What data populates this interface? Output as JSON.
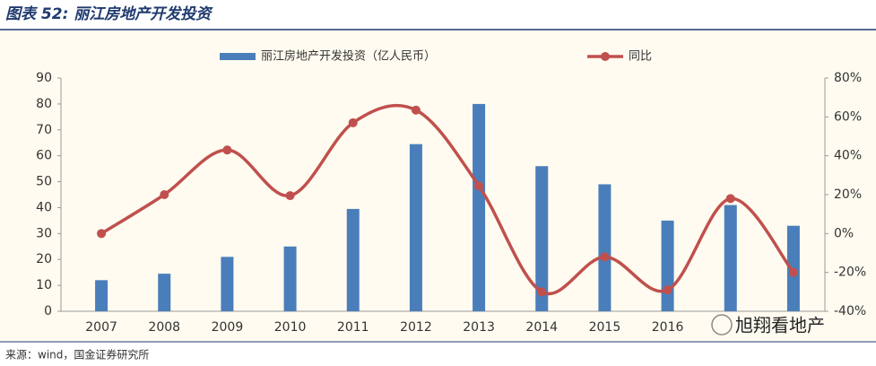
{
  "header": {
    "title": "图表 52:  丽江房地产开发投资"
  },
  "chart_data": {
    "type": "bar-line",
    "categories": [
      "2007",
      "2008",
      "2009",
      "2010",
      "2011",
      "2012",
      "2013",
      "2014",
      "2015",
      "2016",
      null,
      null
    ],
    "series": [
      {
        "name": "丽江房地产开发投资（亿人民币）",
        "type": "bar",
        "color": "#4a7ebb",
        "values": [
          12,
          14.5,
          21,
          25,
          39.5,
          64.5,
          80,
          56,
          49,
          35,
          41,
          33
        ]
      },
      {
        "name": "同比",
        "type": "line",
        "axis": "y2",
        "color": "#c0504d",
        "values": [
          0,
          20,
          43,
          19.5,
          57,
          63.5,
          24.5,
          -30,
          -12,
          -29,
          18,
          -20
        ]
      }
    ],
    "ylim": [
      0,
      90
    ],
    "yticks": [
      0,
      10,
      20,
      30,
      40,
      50,
      60,
      70,
      80,
      90
    ],
    "y2lim": [
      -40,
      80
    ],
    "y2ticks": [
      {
        "value": -40,
        "label": "-40%"
      },
      {
        "value": -20,
        "label": "-20%"
      },
      {
        "value": 0,
        "label": "0%"
      },
      {
        "value": 20,
        "label": "20%"
      },
      {
        "value": 40,
        "label": "40%"
      },
      {
        "value": 60,
        "label": "60%"
      },
      {
        "value": 80,
        "label": "80%"
      }
    ]
  },
  "watermark": "旭翔看地产",
  "source": "来源：wind，国金证券研究所"
}
